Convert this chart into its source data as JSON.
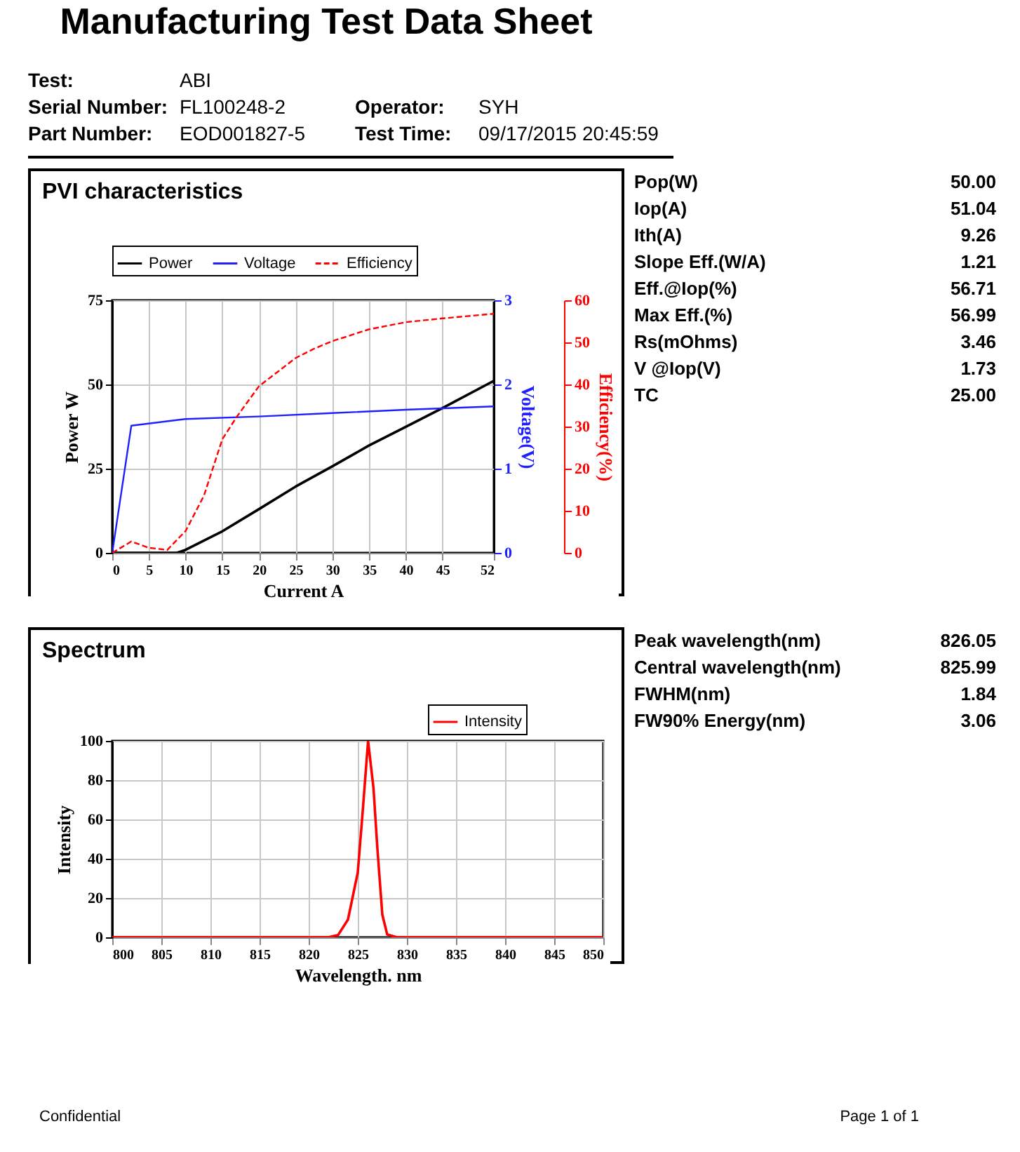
{
  "chart_data": [
    {
      "type": "other",
      "title": "Manufacturing Test Data Sheet",
      "annotations": [
        "Test:",
        "ABI",
        "Serial Number:",
        "FL100248-2",
        "Operator:",
        "SYH",
        "Part Number:",
        "EOD001827-5",
        "Test Time:",
        "09/17/2015 20:45:59"
      ]
    },
    {
      "type": "line",
      "title": "PVI characteristics",
      "xlabel": "Current A",
      "ylabel": "Power W",
      "y2label": "Voltage(V)",
      "y3label": "Efficiency(%)",
      "xlim": [
        0,
        52
      ],
      "xticks": [
        0,
        5,
        10,
        15,
        20,
        25,
        30,
        35,
        40,
        45,
        52
      ],
      "ylim": [
        0,
        75
      ],
      "yticks": [
        0,
        25,
        50,
        75
      ],
      "y2lim": [
        0,
        3
      ],
      "y2ticks": [
        0,
        1,
        2,
        3
      ],
      "y3lim": [
        0,
        60
      ],
      "y3ticks": [
        0,
        10,
        20,
        30,
        40,
        50,
        60
      ],
      "grid": true,
      "legend": "top",
      "series": [
        {
          "name": "Power",
          "color": "#000000",
          "x": [
            0,
            2.5,
            5,
            8.8,
            10,
            15,
            20,
            25,
            30,
            35,
            40,
            45,
            52
          ],
          "values": [
            0,
            0,
            0,
            0,
            0.9,
            6.4,
            13,
            19.7,
            25.7,
            31.9,
            37.4,
            43,
            51.1
          ]
        },
        {
          "name": "Voltage",
          "color": "#2020ff",
          "axis": "y2",
          "x": [
            0,
            2.6,
            10,
            20,
            30,
            40,
            52
          ],
          "values": [
            0,
            1.51,
            1.59,
            1.62,
            1.66,
            1.7,
            1.74
          ]
        },
        {
          "name": "Efficiency",
          "color": "#ff0000",
          "axis": "y3",
          "line_style": "dashed",
          "x": [
            0,
            2.6,
            5,
            7.5,
            10,
            12.5,
            15,
            17,
            20,
            25,
            27.5,
            30,
            35,
            40,
            45,
            52
          ],
          "values": [
            0,
            2.7,
            1.2,
            0.7,
            5.2,
            13.6,
            27,
            32.4,
            39.6,
            46.3,
            48.5,
            50.3,
            53.1,
            54.8,
            55.7,
            56.8
          ]
        }
      ]
    },
    {
      "type": "other",
      "annotations": [
        "Pop(W)",
        "50.00",
        "Iop(A)",
        "51.04",
        "Ith(A)",
        "9.26",
        "Slope Eff.(W/A)",
        "1.21",
        "Eff.@Iop(%)",
        "56.71",
        "Max Eff.(%)",
        "56.99",
        "Rs(mOhms)",
        "3.46",
        "V @Iop(V)",
        "1.73",
        "TC",
        "25.00"
      ]
    },
    {
      "type": "line",
      "title": "Spectrum",
      "xlabel": "Wavelength. nm",
      "ylabel": "Intensity",
      "xlim": [
        800,
        850
      ],
      "xticks": [
        800,
        805,
        810,
        815,
        820,
        825,
        830,
        835,
        840,
        845,
        850
      ],
      "ylim": [
        0,
        100
      ],
      "yticks": [
        0,
        20,
        40,
        60,
        80,
        100
      ],
      "grid": true,
      "legend": "top right",
      "series": [
        {
          "name": "Intensity",
          "color": "#ff0000",
          "x": [
            800,
            822,
            823,
            824,
            825,
            825.5,
            826.05,
            826.6,
            827,
            827.5,
            828,
            829,
            850
          ],
          "values": [
            0,
            0,
            1.2,
            9,
            33,
            64,
            100,
            76,
            45,
            11.5,
            1.4,
            0,
            0
          ]
        }
      ]
    },
    {
      "type": "other",
      "annotations": [
        "Peak wavelength(nm)",
        "826.05",
        "Central wavelength(nm)",
        "825.99",
        "FWHM(nm)",
        "1.84",
        "FW90% Energy(nm)",
        "3.06"
      ]
    },
    {
      "type": "other",
      "annotations": [
        "Confidential",
        "Page 1 of 1"
      ]
    }
  ]
}
